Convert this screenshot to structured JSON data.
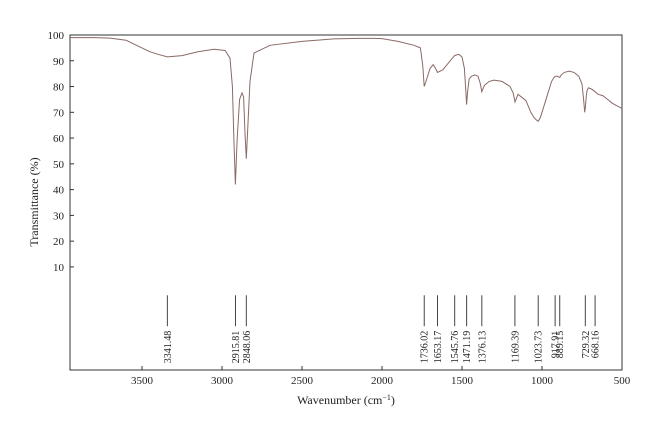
{
  "chart_data": {
    "type": "line",
    "title": "",
    "xlabel": "Wavenumber (cm",
    "xlabel_sup": "−1",
    "xlabel_close": ")",
    "ylabel": "Transmittance (%)",
    "xlim": [
      3950,
      500
    ],
    "ylim": [
      -30,
      100
    ],
    "x_reversed": true,
    "grid": false,
    "legend": "none",
    "line_color": "#8a6a66",
    "xticks": [
      3500,
      3000,
      2500,
      2000,
      1500,
      1000,
      500
    ],
    "yticks": [
      10,
      20,
      30,
      40,
      50,
      60,
      70,
      80,
      90,
      100
    ],
    "series": [
      {
        "x": [
          3950,
          3800,
          3700,
          3600,
          3500,
          3450,
          3400,
          3341,
          3250,
          3150,
          3050,
          2980,
          2950,
          2935,
          2925,
          2916,
          2905,
          2890,
          2875,
          2865,
          2856,
          2848,
          2838,
          2825,
          2800,
          2700,
          2500,
          2300,
          2150,
          2050,
          2000,
          1900,
          1800,
          1760,
          1745,
          1736,
          1725,
          1700,
          1680,
          1665,
          1653,
          1620,
          1600,
          1580,
          1560,
          1546,
          1520,
          1500,
          1485,
          1477,
          1471,
          1465,
          1455,
          1440,
          1420,
          1400,
          1385,
          1376,
          1360,
          1330,
          1300,
          1250,
          1200,
          1180,
          1169,
          1150,
          1130,
          1100,
          1070,
          1050,
          1035,
          1024,
          1010,
          990,
          960,
          940,
          925,
          918,
          905,
          889,
          880,
          860,
          830,
          800,
          770,
          750,
          740,
          733,
          729,
          724,
          718,
          710,
          690,
          668,
          650,
          620,
          590,
          560,
          530,
          500
        ],
        "y": [
          99,
          99,
          98.8,
          98,
          95,
          93.5,
          92.5,
          91.5,
          92,
          93.5,
          94.5,
          94,
          91,
          80,
          58,
          42,
          60,
          75,
          77.5,
          76,
          62,
          52,
          65,
          82,
          93,
          96,
          97.5,
          98.5,
          98.7,
          98.7,
          98.6,
          97.5,
          96,
          95,
          88,
          80,
          82,
          87,
          88.5,
          87,
          85.5,
          86.5,
          88,
          89.5,
          91,
          92,
          92.5,
          91.5,
          87,
          79,
          73,
          78,
          83,
          84,
          84.5,
          84,
          81,
          78,
          80.5,
          82,
          82.5,
          82,
          80,
          77.5,
          74,
          77,
          76,
          74.5,
          70,
          68,
          67,
          66.5,
          68,
          72,
          78,
          82,
          83.5,
          84,
          84,
          83.5,
          84.5,
          85.5,
          86,
          85.5,
          84,
          81,
          75,
          70,
          72,
          76,
          78.5,
          79.5,
          79,
          78,
          77,
          76.5,
          75,
          73.5,
          72.5,
          71.5
        ]
      }
    ],
    "annotations": [
      {
        "x": 3341.48,
        "text": "3341.48"
      },
      {
        "x": 2915.81,
        "text": "2915.81"
      },
      {
        "x": 2848.06,
        "text": "2848.06"
      },
      {
        "x": 1736.02,
        "text": "1736.02"
      },
      {
        "x": 1653.17,
        "text": "1653.17"
      },
      {
        "x": 1545.76,
        "text": "1545.76"
      },
      {
        "x": 1471.19,
        "text": "1471.19"
      },
      {
        "x": 1376.13,
        "text": "1376.13"
      },
      {
        "x": 1169.39,
        "text": "1169.39"
      },
      {
        "x": 1023.73,
        "text": "1023.73"
      },
      {
        "x": 917.91,
        "text": "917.91"
      },
      {
        "x": 889.15,
        "text": "889.15"
      },
      {
        "x": 729.32,
        "text": "729.32"
      },
      {
        "x": 668.16,
        "text": "668.16"
      }
    ]
  }
}
